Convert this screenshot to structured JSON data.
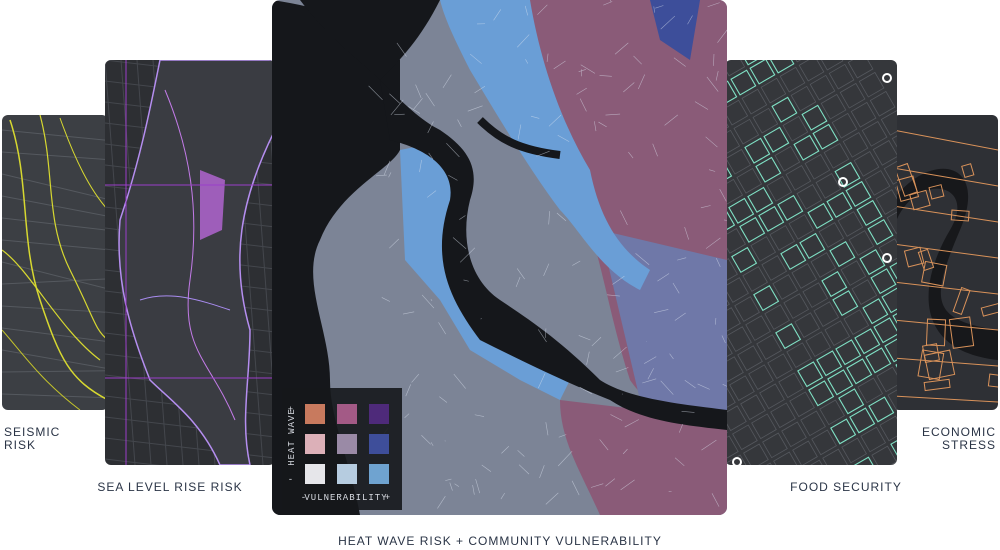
{
  "cards": {
    "seismic": {
      "label": [
        "SEISMIC",
        "RISK"
      ]
    },
    "sea_level": {
      "label": "SEA LEVEL RISE RISK"
    },
    "heat_wave": {
      "label": "HEAT WAVE RISK + COMMUNITY VULNERABILITY",
      "legend": {
        "y_label": "HEAT WAVE",
        "x_label": "VULNERABILITY",
        "high": "+",
        "low": "-"
      }
    },
    "food": {
      "label": "FOOD SECURITY"
    },
    "economic": {
      "label": [
        "ECONOMIC",
        "STRESS"
      ]
    }
  }
}
